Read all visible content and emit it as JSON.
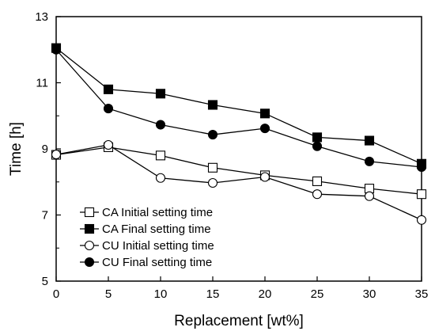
{
  "chart_data": {
    "type": "line",
    "xlabel": "Replacement [wt%]",
    "ylabel": "Time [h]",
    "xlim": [
      0,
      35
    ],
    "ylim": [
      5,
      13
    ],
    "x_ticks": [
      "0",
      "5",
      "10",
      "15",
      "20",
      "25",
      "30",
      "35"
    ],
    "y_ticks": [
      "5",
      "7",
      "9",
      "11",
      "13"
    ],
    "grid": false,
    "legend_position": "bottom-left",
    "x": [
      0,
      5,
      10,
      15,
      20,
      25,
      30,
      35
    ],
    "series": [
      {
        "name": "CA Initial setting time",
        "marker": "square-open",
        "values": [
          8.82,
          9.05,
          8.8,
          8.43,
          8.2,
          8.02,
          7.8,
          7.63
        ]
      },
      {
        "name": "CA Final setting time",
        "marker": "square-filled",
        "values": [
          12.05,
          10.8,
          10.67,
          10.33,
          10.07,
          9.35,
          9.25,
          8.55
        ]
      },
      {
        "name": "CU Initial setting time",
        "marker": "circle-open",
        "values": [
          8.83,
          9.12,
          8.12,
          7.97,
          8.15,
          7.63,
          7.57,
          6.85
        ]
      },
      {
        "name": "CU Final setting time",
        "marker": "circle-filled",
        "values": [
          12.0,
          10.22,
          9.73,
          9.43,
          9.62,
          9.08,
          8.62,
          8.45
        ]
      }
    ]
  }
}
